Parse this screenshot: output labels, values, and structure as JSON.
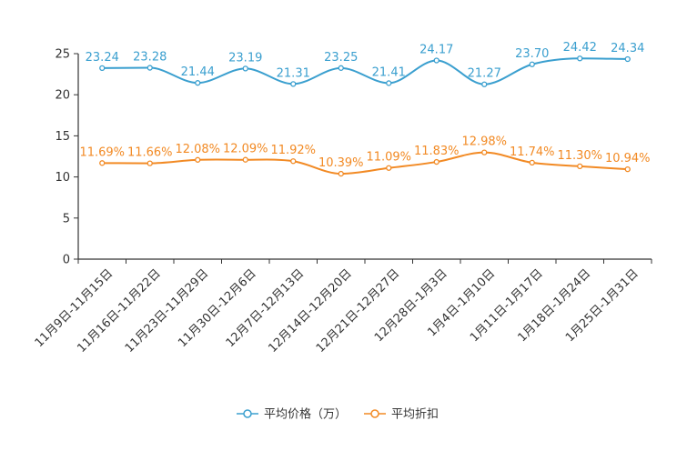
{
  "chart_data": {
    "type": "line",
    "title": "",
    "xlabel": "",
    "ylabel": "",
    "ylim": [
      0,
      25
    ],
    "yticks": [
      0,
      5,
      10,
      15,
      20,
      25
    ],
    "grid": false,
    "legend_position": "bottom-center",
    "categories": [
      "11月9日-11月15日",
      "11月16日-11月22日",
      "11月23日-11月29日",
      "11月30日-12月6日",
      "12月7日-12月13日",
      "12月14日-12月20日",
      "12月21日-12月27日",
      "12月28日-1月3日",
      "1月4日-1月10日",
      "1月11日-1月17日",
      "1月18日-1月24日",
      "1月25日-1月31日"
    ],
    "series": [
      {
        "name": "平均价格（万）",
        "color": "#3a9fcf",
        "values": [
          23.24,
          23.28,
          21.44,
          23.19,
          21.31,
          23.25,
          21.41,
          24.17,
          21.27,
          23.7,
          24.42,
          24.34
        ],
        "labels": [
          "23.24",
          "23.28",
          "21.44",
          "23.19",
          "21.31",
          "23.25",
          "21.41",
          "24.17",
          "21.27",
          "23.70",
          "24.42",
          "24.34"
        ]
      },
      {
        "name": "平均折扣",
        "color": "#f28a24",
        "values": [
          11.69,
          11.66,
          12.08,
          12.09,
          11.92,
          10.39,
          11.09,
          11.83,
          12.98,
          11.74,
          11.3,
          10.94
        ],
        "labels": [
          "11.69%",
          "11.66%",
          "12.08%",
          "12.09%",
          "11.92%",
          "10.39%",
          "11.09%",
          "11.83%",
          "12.98%",
          "11.74%",
          "11.30%",
          "10.94%"
        ]
      }
    ]
  }
}
